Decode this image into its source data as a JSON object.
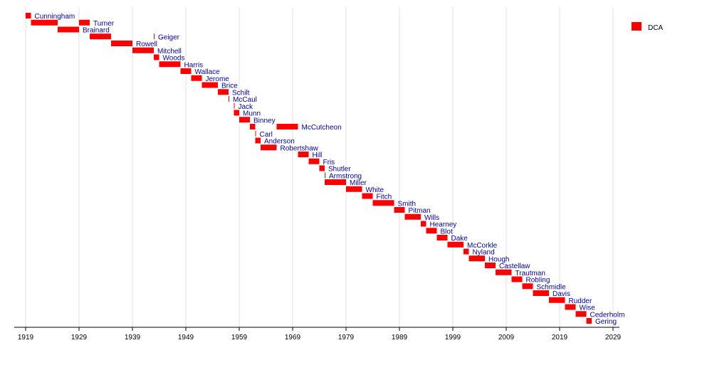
{
  "chart_data": {
    "type": "timeline",
    "xlim": [
      1917,
      2031
    ],
    "x_ticks": [
      1919,
      1929,
      1939,
      1949,
      1959,
      1969,
      1979,
      1989,
      1999,
      2009,
      2019,
      2029
    ],
    "grid": true,
    "legend": {
      "placement": "top-right",
      "entries": [
        {
          "name": "DCA",
          "color": "#ff0000"
        }
      ]
    },
    "bar_color": "#ff0000",
    "label_color": "#0000aa",
    "rows": [
      {
        "label": "Cunningham",
        "spans": [
          [
            1919,
            1920
          ]
        ]
      },
      {
        "label": "Turner",
        "spans": [
          [
            1920,
            1925
          ],
          [
            1929,
            1931
          ]
        ]
      },
      {
        "label": "Brainard",
        "spans": [
          [
            1925,
            1929
          ]
        ]
      },
      {
        "label": "Geiger",
        "spans": [
          [
            1931,
            1935
          ],
          [
            1943,
            1943
          ]
        ]
      },
      {
        "label": "Rowell",
        "spans": [
          [
            1935,
            1939
          ]
        ]
      },
      {
        "label": "Mitchell",
        "spans": [
          [
            1939,
            1943
          ]
        ]
      },
      {
        "label": "Woods",
        "spans": [
          [
            1943,
            1944
          ]
        ]
      },
      {
        "label": "Harris",
        "spans": [
          [
            1944,
            1948
          ]
        ]
      },
      {
        "label": "Wallace",
        "spans": [
          [
            1948,
            1950
          ]
        ]
      },
      {
        "label": "Jerome",
        "spans": [
          [
            1950,
            1952
          ]
        ]
      },
      {
        "label": "Brice",
        "spans": [
          [
            1952,
            1955
          ]
        ]
      },
      {
        "label": "Schilt",
        "spans": [
          [
            1955,
            1957
          ]
        ]
      },
      {
        "label": "McCaul",
        "spans": [
          [
            1957,
            1957
          ]
        ]
      },
      {
        "label": "Jack",
        "spans": [
          [
            1958,
            1958
          ]
        ]
      },
      {
        "label": "Munn",
        "spans": [
          [
            1958,
            1959
          ]
        ]
      },
      {
        "label": "Binney",
        "spans": [
          [
            1959,
            1961
          ]
        ]
      },
      {
        "label": "McCutcheon",
        "spans": [
          [
            1961,
            1962
          ],
          [
            1966,
            1970
          ]
        ]
      },
      {
        "label": "Carl",
        "spans": [
          [
            1962,
            1962
          ]
        ]
      },
      {
        "label": "Anderson",
        "spans": [
          [
            1962,
            1963
          ]
        ]
      },
      {
        "label": "Robertshaw",
        "spans": [
          [
            1963,
            1966
          ]
        ]
      },
      {
        "label": "Hill",
        "spans": [
          [
            1970,
            1972
          ]
        ]
      },
      {
        "label": "Fris",
        "spans": [
          [
            1972,
            1974
          ]
        ]
      },
      {
        "label": "Shutler",
        "spans": [
          [
            1974,
            1975
          ]
        ]
      },
      {
        "label": "Armstrong",
        "spans": [
          [
            1975,
            1975
          ]
        ]
      },
      {
        "label": "Miller",
        "spans": [
          [
            1975,
            1979
          ]
        ]
      },
      {
        "label": "White",
        "spans": [
          [
            1979,
            1982
          ]
        ]
      },
      {
        "label": "Fitch",
        "spans": [
          [
            1982,
            1984
          ]
        ]
      },
      {
        "label": "Smith",
        "spans": [
          [
            1984,
            1988
          ]
        ]
      },
      {
        "label": "Pitman",
        "spans": [
          [
            1988,
            1990
          ]
        ]
      },
      {
        "label": "Wills",
        "spans": [
          [
            1990,
            1993
          ]
        ]
      },
      {
        "label": "Hearney",
        "spans": [
          [
            1993,
            1994
          ]
        ]
      },
      {
        "label": "Blot",
        "spans": [
          [
            1994,
            1996
          ]
        ]
      },
      {
        "label": "Dake",
        "spans": [
          [
            1996,
            1998
          ]
        ]
      },
      {
        "label": "McCorkle",
        "spans": [
          [
            1998,
            2001
          ]
        ]
      },
      {
        "label": "Nyland",
        "spans": [
          [
            2001,
            2002
          ]
        ]
      },
      {
        "label": "Hough",
        "spans": [
          [
            2002,
            2005
          ]
        ]
      },
      {
        "label": "Castellaw",
        "spans": [
          [
            2005,
            2007
          ]
        ]
      },
      {
        "label": "Trautman",
        "spans": [
          [
            2007,
            2010
          ]
        ]
      },
      {
        "label": "Robling",
        "spans": [
          [
            2010,
            2012
          ]
        ]
      },
      {
        "label": "Schmidle",
        "spans": [
          [
            2012,
            2014
          ]
        ]
      },
      {
        "label": "Davis",
        "spans": [
          [
            2014,
            2017
          ]
        ]
      },
      {
        "label": "Rudder",
        "spans": [
          [
            2017,
            2020
          ]
        ]
      },
      {
        "label": "Wise",
        "spans": [
          [
            2020,
            2022
          ]
        ]
      },
      {
        "label": "Cederholm",
        "spans": [
          [
            2022,
            2024
          ]
        ]
      },
      {
        "label": "Gering",
        "spans": [
          [
            2024,
            2025
          ]
        ]
      }
    ]
  }
}
